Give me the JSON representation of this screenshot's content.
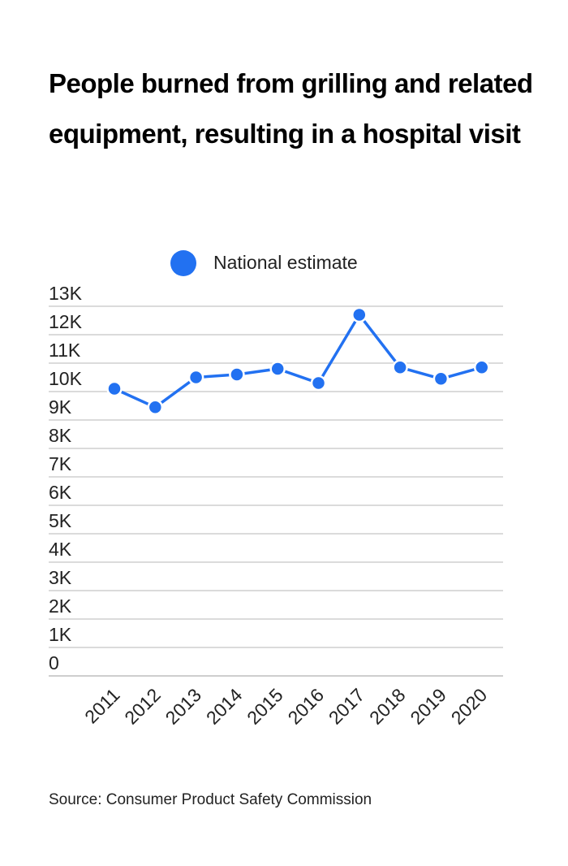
{
  "title": "People burned from grilling and related equipment, resulting in a hospital visit",
  "source": "Source: Consumer Product Safety Commission",
  "chart_data": {
    "type": "line",
    "title": "People burned from grilling and related equipment, resulting in a hospital visit",
    "categories": [
      "2011",
      "2012",
      "2013",
      "2014",
      "2015",
      "2016",
      "2017",
      "2018",
      "2019",
      "2020"
    ],
    "series": [
      {
        "name": "National estimate",
        "values": [
          10100,
          9450,
          10500,
          10600,
          10800,
          10300,
          12700,
          10850,
          10450,
          10850
        ],
        "color": "#2271f1"
      }
    ],
    "y_ticks": [
      "0",
      "1K",
      "2K",
      "3K",
      "4K",
      "5K",
      "6K",
      "7K",
      "8K",
      "9K",
      "10K",
      "11K",
      "12K",
      "13K"
    ],
    "ylim": [
      0,
      13000
    ],
    "xlabel": "",
    "ylabel": "",
    "grid": true,
    "legend_position": "top-center"
  }
}
